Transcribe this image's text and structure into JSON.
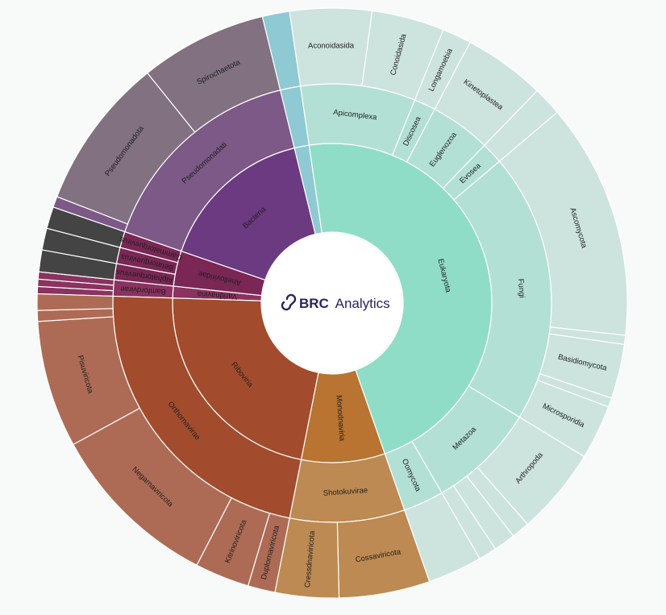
{
  "chart_data": {
    "type": "sunburst",
    "title": "",
    "center_logo": {
      "brand": "BRC",
      "product": "Analytics"
    },
    "colors": {
      "viruses_ribo": "#a24c2d",
      "viruses_mono": "#b87430",
      "viruses_shoto": "#bc8a52",
      "viruses_outer": "#ad6b55",
      "anello": "#7a2755",
      "varidna": "#8a3260",
      "bacteria": "#6b3a80",
      "bacteria_mid": "#7c5986",
      "bacteria_outer": "#817181",
      "eukaryota": "#90ddc7",
      "euk_mid": "#b3e0d4",
      "euk_outer": "#cde3de",
      "archaea": "#8fc9d3",
      "dark": "#444444"
    },
    "tree": {
      "name": "root",
      "children": [
        {
          "name": "Varidnaviria",
          "color": "varidna",
          "value": 1.2,
          "children": [
            {
              "name": "Bamfordvirae",
              "color": "varidna",
              "value": 1.2,
              "children": [
                {
                  "name": "",
                  "color": "varidna",
                  "value": 0.4
                },
                {
                  "name": "",
                  "color": "varidna",
                  "value": 0.4
                },
                {
                  "name": "",
                  "color": "varidna",
                  "value": 0.4
                }
              ]
            }
          ]
        },
        {
          "name": "Anelloviridae",
          "color": "anello",
          "value": 3.6,
          "children": [
            {
              "name": "Alphatorquevirus",
              "color": "anello",
              "value": 1.2,
              "children": [
                {
                  "name": "",
                  "color": "dark",
                  "value": 1.2
                }
              ]
            },
            {
              "name": "Betatorquevirus",
              "color": "anello",
              "value": 1.2,
              "children": [
                {
                  "name": "",
                  "color": "dark",
                  "value": 1.2
                }
              ]
            },
            {
              "name": "Gammatorquevirus",
              "color": "anello",
              "value": 1.2,
              "children": [
                {
                  "name": "",
                  "color": "dark",
                  "value": 1.2
                }
              ]
            }
          ]
        },
        {
          "name": "Bacteria",
          "color": "bacteria",
          "value": 16,
          "children": [
            {
              "name": "Pseudomonadati",
              "color": "bacteria_mid",
              "value": 16,
              "children": [
                {
                  "name": "",
                  "color": "bacteria_mid",
                  "value": 0.6
                },
                {
                  "name": "Pseudomonadota",
                  "color": "bacteria_outer",
                  "value": 8.4
                },
                {
                  "name": "Spirochaetota",
                  "color": "bacteria_outer",
                  "value": 7.0
                }
              ]
            }
          ]
        },
        {
          "name": "",
          "color": "archaea",
          "value": 1.5,
          "children": [
            {
              "name": "",
              "color": "archaea",
              "value": 1.5,
              "children": [
                {
                  "name": "",
                  "color": "archaea",
                  "value": 1.5
                }
              ]
            }
          ]
        },
        {
          "name": "Eukaryota",
          "color": "eukaryota",
          "value": 47.2,
          "children": [
            {
              "name": "Apicomplexa",
              "color": "euk_mid",
              "value": 8.5,
              "children": [
                {
                  "name": "Aconoidasida",
                  "color": "euk_outer",
                  "value": 4.5
                },
                {
                  "name": "Conoidasida",
                  "color": "euk_outer",
                  "value": 4.0
                }
              ]
            },
            {
              "name": "Discosea",
              "color": "euk_mid",
              "value": 1.6,
              "children": [
                {
                  "name": "Longamoebia",
                  "color": "euk_outer",
                  "value": 1.6
                }
              ]
            },
            {
              "name": "Euglenozoa",
              "color": "euk_mid",
              "value": 4.5,
              "children": [
                {
                  "name": "Kinetoplastea",
                  "color": "euk_outer",
                  "value": 4.5
                }
              ]
            },
            {
              "name": "Evosea",
              "color": "euk_mid",
              "value": 1.6,
              "children": [
                {
                  "name": "",
                  "color": "euk_outer",
                  "value": 1.6
                }
              ]
            },
            {
              "name": "Fungi",
              "color": "euk_mid",
              "value": 20.0,
              "children": [
                {
                  "name": "Ascomycota",
                  "color": "euk_outer",
                  "value": 13.0
                },
                {
                  "name": "",
                  "color": "euk_outer",
                  "value": 0.5
                },
                {
                  "name": "Basidiomycota",
                  "color": "euk_outer",
                  "value": 3.0
                },
                {
                  "name": "",
                  "color": "euk_outer",
                  "value": 0.5
                },
                {
                  "name": "Microsporidia",
                  "color": "euk_outer",
                  "value": 3.0
                }
              ]
            },
            {
              "name": "Metazoa",
              "color": "euk_mid",
              "value": 8.0,
              "children": [
                {
                  "name": "Arthropoda",
                  "color": "euk_outer",
                  "value": 4.8
                },
                {
                  "name": "",
                  "color": "euk_outer",
                  "value": 1.0
                },
                {
                  "name": "",
                  "color": "euk_outer",
                  "value": 1.2
                },
                {
                  "name": "",
                  "color": "euk_outer",
                  "value": 1.0
                }
              ]
            },
            {
              "name": "Oomycota",
              "color": "euk_mid",
              "value": 3.0,
              "children": [
                {
                  "name": "",
                  "color": "euk_outer",
                  "value": 3.0
                }
              ]
            }
          ]
        },
        {
          "name": "Monodnaviria",
          "color": "viruses_mono",
          "value": 8.5,
          "children": [
            {
              "name": "Shotokuvirae",
              "color": "viruses_shoto",
              "value": 8.5,
              "children": [
                {
                  "name": "Cossaviricota",
                  "color": "viruses_shoto",
                  "value": 5.0
                },
                {
                  "name": "Cressdnaviricota",
                  "color": "viruses_shoto",
                  "value": 3.5
                }
              ]
            }
          ]
        },
        {
          "name": "Riboviria",
          "color": "viruses_ribo",
          "value": 22.5,
          "children": [
            {
              "name": "Orthornavirae",
              "color": "viruses_ribo",
              "value": 22.5,
              "children": [
                {
                  "name": "Duplornaviricota",
                  "color": "viruses_outer",
                  "value": 1.5
                },
                {
                  "name": "Kitrinoviricota",
                  "color": "viruses_outer",
                  "value": 3.0
                },
                {
                  "name": "Negarnaviricota",
                  "color": "viruses_outer",
                  "value": 9.5
                },
                {
                  "name": "Pisuviricota",
                  "color": "viruses_outer",
                  "value": 7.0
                },
                {
                  "name": "",
                  "color": "viruses_outer",
                  "value": 0.6
                },
                {
                  "name": "",
                  "color": "viruses_outer",
                  "value": 0.9
                }
              ]
            }
          ]
        }
      ]
    }
  }
}
